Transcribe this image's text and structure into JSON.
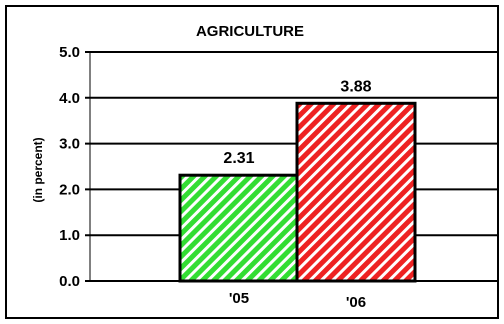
{
  "chart_data": {
    "type": "bar",
    "title": "AGRICULTURE",
    "xlabel": "",
    "ylabel": "(in percent)",
    "categories": [
      "'05",
      "'06"
    ],
    "values": [
      2.31,
      3.88
    ],
    "value_labels": [
      "2.31",
      "3.88"
    ],
    "yticks": [
      "5.0",
      "4.0",
      "3.0",
      "2.0",
      "1.0",
      "0.0"
    ],
    "ylim": [
      0,
      5
    ],
    "grid": true,
    "legend": "none",
    "bar_colors": [
      "#33dd33",
      "#ee2222"
    ],
    "bar_pattern": "diagonal-white-hatch"
  }
}
